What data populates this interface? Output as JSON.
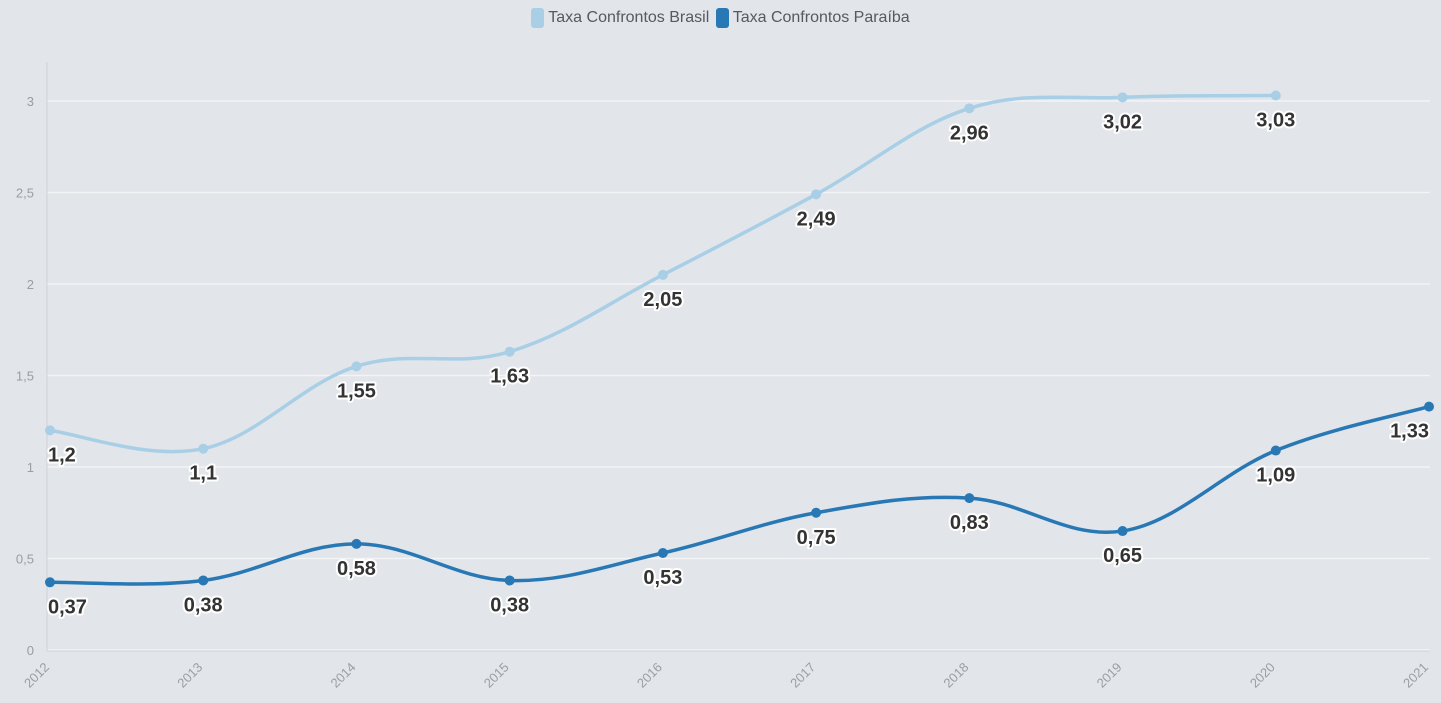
{
  "chart_data": {
    "type": "line",
    "categories": [
      "2012",
      "2013",
      "2014",
      "2015",
      "2016",
      "2017",
      "2018",
      "2019",
      "2020",
      "2021"
    ],
    "series": [
      {
        "name": "Taxa Confrontos Brasil",
        "color": "#a8cfe6",
        "values": [
          1.2,
          1.1,
          1.55,
          1.63,
          2.05,
          2.49,
          2.96,
          3.02,
          3.03,
          null
        ],
        "labels": [
          "1,2",
          "1,1",
          "1,55",
          "1,63",
          "2,05",
          "2,49",
          "2,96",
          "3,02",
          "3,03",
          ""
        ]
      },
      {
        "name": "Taxa Confrontos Paraíba",
        "color": "#2878b5",
        "values": [
          0.37,
          0.38,
          0.58,
          0.38,
          0.53,
          0.75,
          0.83,
          0.65,
          1.09,
          1.33
        ],
        "labels": [
          "0,37",
          "0,38",
          "0,58",
          "0,38",
          "0,53",
          "0,75",
          "0,83",
          "0,65",
          "1,09",
          "1,33"
        ]
      }
    ],
    "y_ticks": [
      0,
      0.5,
      1,
      1.5,
      2,
      2.5,
      3
    ],
    "y_tick_labels": [
      "0",
      "0,5",
      "1",
      "1,5",
      "2",
      "2,5",
      "3"
    ],
    "ylim": [
      0,
      3
    ],
    "grid": true,
    "legend_position": "top-center",
    "title": "",
    "xlabel": "",
    "ylabel": ""
  }
}
